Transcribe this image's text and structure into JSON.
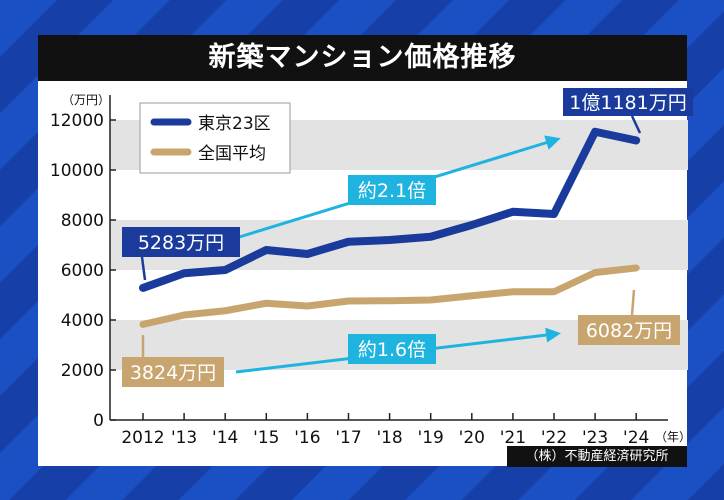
{
  "chart_data": {
    "type": "line",
    "title": "新築マンション価格推移",
    "ylabel": "（万円）",
    "xlabel_unit": "（年）",
    "ylim": [
      0,
      12000
    ],
    "yticks": [
      0,
      2000,
      4000,
      6000,
      8000,
      10000,
      12000
    ],
    "categories": [
      "2012",
      "'13",
      "'14",
      "'15",
      "'16",
      "'17",
      "'18",
      "'19",
      "'20",
      "'21",
      "'22",
      "'23",
      "'24"
    ],
    "grid": "alternating horizontal bands",
    "legend": "top-left",
    "series": [
      {
        "name": "東京23区",
        "color": "#1a3a9c",
        "values": [
          5283,
          5870,
          6000,
          6800,
          6640,
          7130,
          7200,
          7330,
          7800,
          8330,
          8240,
          11530,
          11181
        ]
      },
      {
        "name": "全国平均",
        "color": "#c8a56e",
        "values": [
          3824,
          4200,
          4370,
          4670,
          4560,
          4760,
          4770,
          4800,
          4970,
          5130,
          5130,
          5900,
          6082
        ]
      }
    ],
    "annotations": {
      "tokyo_start": "5283万円",
      "tokyo_end": "1億1181万円",
      "national_start": "3824万円",
      "national_end": "6082万円",
      "tokyo_ratio": "約2.1倍",
      "national_ratio": "約1.6倍"
    },
    "arrow_color": "#1fb3e0",
    "source": "（株）不動産経済研究所"
  }
}
